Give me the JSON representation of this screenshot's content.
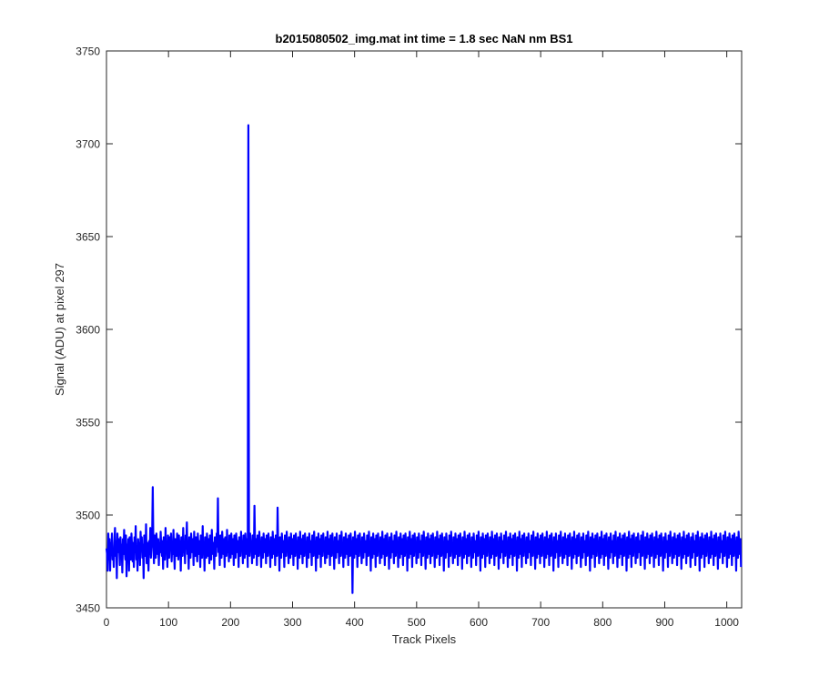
{
  "chart_data": {
    "type": "line",
    "title": "b2015080502_img.mat int time = 1.8 sec  NaN nm BS1",
    "xlabel": "Track Pixels",
    "ylabel": "Signal (ADU) at pixel 297",
    "xlim": [
      0,
      1024
    ],
    "ylim": [
      3450,
      3750
    ],
    "xticks": [
      "0",
      "100",
      "200",
      "300",
      "400",
      "500",
      "600",
      "700",
      "800",
      "900",
      "1000"
    ],
    "yticks": [
      "3450",
      "3500",
      "3550",
      "3600",
      "3650",
      "3700",
      "3750"
    ],
    "grid": false,
    "series_color": "#0000ff",
    "series": [
      {
        "x_start": 0,
        "x_end": 1023,
        "values": [
          3482,
          3479,
          3470,
          3490,
          3476,
          3487,
          3470,
          3485,
          3479,
          3490,
          3476,
          3481,
          3472,
          3485,
          3493,
          3478,
          3486,
          3466,
          3490,
          3480,
          3487,
          3482,
          3473,
          3488,
          3478,
          3484,
          3469,
          3487,
          3479,
          3492,
          3481,
          3476,
          3489,
          3467,
          3484,
          3479,
          3487,
          3470,
          3488,
          3481,
          3476,
          3490,
          3483,
          3475,
          3485,
          3472,
          3488,
          3480,
          3494,
          3476,
          3483,
          3470,
          3487,
          3479,
          3485,
          3473,
          3491,
          3481,
          3488,
          3477,
          3484,
          3466,
          3489,
          3482,
          3478,
          3495,
          3474,
          3485,
          3481,
          3470,
          3486,
          3479,
          3493,
          3477,
          3484,
          3488,
          3515,
          3484,
          3474,
          3489,
          3481,
          3477,
          3490,
          3484,
          3479,
          3487,
          3473,
          3485,
          3480,
          3491,
          3482,
          3478,
          3486,
          3471,
          3488,
          3482,
          3476,
          3493,
          3480,
          3485,
          3472,
          3489,
          3481,
          3477,
          3488,
          3483,
          3490,
          3475,
          3484,
          3479,
          3492,
          3480,
          3471,
          3487,
          3482,
          3478,
          3490,
          3484,
          3476,
          3489,
          3481,
          3486,
          3470,
          3488,
          3483,
          3478,
          3493,
          3480,
          3485,
          3474,
          3489,
          3482,
          3496,
          3479,
          3486,
          3471,
          3488,
          3482,
          3477,
          3490,
          3484,
          3480,
          3487,
          3473,
          3491,
          3482,
          3478,
          3488,
          3481,
          3475,
          3490,
          3483,
          3479,
          3486,
          3472,
          3489,
          3482,
          3477,
          3494,
          3480,
          3485,
          3470,
          3488,
          3481,
          3477,
          3490,
          3484,
          3478,
          3487,
          3474,
          3489,
          3481,
          3476,
          3492,
          3483,
          3479,
          3485,
          3471,
          3488,
          3482,
          3478,
          3490,
          3483,
          3509,
          3480,
          3486,
          3473,
          3489,
          3481,
          3477,
          3491,
          3484,
          3479,
          3487,
          3472,
          3488,
          3482,
          3478,
          3492,
          3480,
          3485,
          3475,
          3489,
          3482,
          3477,
          3490,
          3484,
          3479,
          3487,
          3473,
          3489,
          3481,
          3477,
          3490,
          3484,
          3480,
          3486,
          3472,
          3488,
          3483,
          3478,
          3491,
          3481,
          3486,
          3474,
          3489,
          3482,
          3477,
          3490,
          3484,
          3479,
          3487,
          3472,
          3710,
          3488,
          3478,
          3490,
          3482,
          3486,
          3474,
          3489,
          3481,
          3477,
          3505,
          3484,
          3479,
          3487,
          3473,
          3489,
          3482,
          3478,
          3491,
          3483,
          3485,
          3472,
          3488,
          3481,
          3477,
          3490,
          3484,
          3480,
          3487,
          3474,
          3489,
          3482,
          3478,
          3490,
          3483,
          3486,
          3472,
          3488,
          3481,
          3477,
          3491,
          3484,
          3479,
          3487,
          3473,
          3489,
          3482,
          3478,
          3504,
          3483,
          3485,
          3470,
          3488,
          3481,
          3477,
          3490,
          3484,
          3480,
          3486,
          3472,
          3489,
          3482,
          3478,
          3491,
          3483,
          3485,
          3474,
          3488,
          3481,
          3477,
          3490,
          3484,
          3479,
          3487,
          3473,
          3489,
          3482,
          3478,
          3490,
          3483,
          3486,
          3471,
          3488,
          3481,
          3477,
          3491,
          3484,
          3479,
          3487,
          3474,
          3489,
          3482,
          3478,
          3490,
          3483,
          3485,
          3472,
          3488,
          3481,
          3477,
          3490,
          3484,
          3480,
          3486,
          3473,
          3489,
          3482,
          3478,
          3491,
          3483,
          3485,
          3470,
          3488,
          3481,
          3477,
          3490,
          3484,
          3479,
          3487,
          3472,
          3489,
          3482,
          3478,
          3490,
          3483,
          3486,
          3474,
          3488,
          3481,
          3477,
          3491,
          3484,
          3479,
          3487,
          3473,
          3489,
          3482,
          3478,
          3490,
          3483,
          3485,
          3471,
          3488,
          3481,
          3477,
          3490,
          3484,
          3480,
          3486,
          3474,
          3489,
          3482,
          3478,
          3491,
          3483,
          3485,
          3472,
          3488,
          3481,
          3477,
          3490,
          3484,
          3479,
          3487,
          3473,
          3489,
          3482,
          3478,
          3490,
          3483,
          3486,
          3458,
          3488,
          3481,
          3477,
          3491,
          3484,
          3479,
          3487,
          3472,
          3489,
          3482,
          3478,
          3490,
          3483,
          3485,
          3474,
          3488,
          3481,
          3477,
          3490,
          3484,
          3480,
          3486,
          3473,
          3489,
          3482,
          3478,
          3491,
          3483,
          3485,
          3470,
          3488,
          3481,
          3477,
          3490,
          3484,
          3479,
          3487,
          3472,
          3489,
          3482,
          3478,
          3490,
          3483,
          3486,
          3474,
          3488,
          3481,
          3477,
          3491,
          3484,
          3479,
          3487,
          3473,
          3489,
          3482,
          3478,
          3490,
          3483,
          3485,
          3471,
          3488,
          3481,
          3477,
          3490,
          3484,
          3480,
          3486,
          3474,
          3489,
          3482,
          3478,
          3491,
          3483,
          3485,
          3472,
          3488,
          3481,
          3477,
          3490,
          3484,
          3479,
          3487,
          3473,
          3489,
          3482,
          3478,
          3490,
          3483,
          3486,
          3470,
          3488,
          3481,
          3477,
          3491,
          3484,
          3479,
          3487,
          3472,
          3489,
          3482,
          3478,
          3490,
          3483,
          3485,
          3474,
          3488,
          3481,
          3477,
          3490,
          3484,
          3480,
          3486,
          3473,
          3489,
          3482,
          3478,
          3491,
          3483,
          3485,
          3471,
          3488,
          3481,
          3477,
          3490,
          3484,
          3479,
          3487,
          3474,
          3489,
          3482,
          3478,
          3490,
          3483,
          3486,
          3472,
          3488,
          3481,
          3477,
          3491,
          3484,
          3479,
          3487,
          3473,
          3489,
          3482,
          3478,
          3490,
          3483,
          3485,
          3470,
          3488,
          3481,
          3477,
          3490,
          3484,
          3480,
          3486,
          3472,
          3489,
          3482,
          3478,
          3491,
          3483,
          3485,
          3474,
          3488,
          3481,
          3477,
          3490,
          3484,
          3479,
          3487,
          3473,
          3489,
          3482,
          3478,
          3490,
          3483,
          3486,
          3471,
          3488,
          3481,
          3477,
          3491,
          3484,
          3479,
          3487,
          3474,
          3489,
          3482,
          3478,
          3490,
          3483,
          3485,
          3472,
          3488,
          3481,
          3477,
          3490,
          3484,
          3480,
          3486,
          3473,
          3489,
          3482,
          3478,
          3491,
          3483,
          3485,
          3470,
          3488,
          3481,
          3477,
          3490,
          3484,
          3479,
          3487,
          3472,
          3489,
          3482,
          3478,
          3490,
          3483,
          3486,
          3474,
          3488,
          3481,
          3477,
          3491,
          3484,
          3479,
          3487,
          3473,
          3489,
          3482,
          3478,
          3490,
          3483,
          3485,
          3471,
          3488,
          3481,
          3477,
          3490,
          3484,
          3480,
          3486,
          3474,
          3489,
          3482,
          3478,
          3491,
          3483,
          3485,
          3472,
          3488,
          3481,
          3477,
          3490,
          3484,
          3479,
          3487,
          3473,
          3489,
          3482,
          3478,
          3490,
          3483,
          3486,
          3470,
          3488,
          3481,
          3477,
          3491,
          3484,
          3479,
          3487,
          3472,
          3489,
          3482,
          3478,
          3490,
          3483,
          3485,
          3474,
          3488,
          3481,
          3477,
          3490,
          3484,
          3480,
          3486,
          3473,
          3489,
          3482,
          3478,
          3491,
          3483,
          3485,
          3471,
          3488,
          3481,
          3477,
          3490,
          3484,
          3479,
          3487,
          3474,
          3489,
          3482,
          3478,
          3490,
          3483,
          3486,
          3472,
          3488,
          3481,
          3477,
          3491,
          3484,
          3479,
          3487,
          3473,
          3489,
          3482,
          3478,
          3490,
          3483,
          3485,
          3470,
          3488,
          3481,
          3477,
          3490,
          3484,
          3480,
          3486,
          3472,
          3489,
          3482,
          3478,
          3491,
          3483,
          3485,
          3474,
          3488,
          3481,
          3477,
          3490,
          3484,
          3479,
          3487,
          3473,
          3489,
          3482,
          3478,
          3490,
          3483,
          3486,
          3471,
          3488,
          3481,
          3477,
          3491,
          3484,
          3479,
          3487,
          3474,
          3489,
          3482,
          3478,
          3490,
          3483,
          3485,
          3472,
          3488,
          3481,
          3477,
          3490,
          3484,
          3480,
          3486,
          3473,
          3489,
          3482,
          3478,
          3491,
          3483,
          3485,
          3470,
          3488,
          3481,
          3477,
          3490,
          3484,
          3479,
          3487,
          3472,
          3489,
          3482,
          3478,
          3490,
          3483,
          3486,
          3474,
          3488,
          3481,
          3477,
          3491,
          3484,
          3479,
          3487,
          3473,
          3489,
          3482,
          3478,
          3490,
          3483,
          3485,
          3471,
          3488,
          3481,
          3477,
          3490,
          3484,
          3480,
          3486,
          3474,
          3489,
          3482,
          3478,
          3491,
          3483,
          3485,
          3472,
          3488,
          3481,
          3477,
          3490,
          3484,
          3479,
          3487,
          3473,
          3489,
          3482,
          3478,
          3490,
          3483,
          3486,
          3470,
          3488,
          3481,
          3477,
          3491,
          3484,
          3479,
          3487,
          3472,
          3489,
          3482,
          3478,
          3490,
          3483,
          3485,
          3474,
          3488,
          3481,
          3477,
          3490,
          3484,
          3480,
          3486,
          3473,
          3489,
          3482,
          3478,
          3491,
          3483,
          3485,
          3471,
          3488,
          3481,
          3477,
          3490,
          3484,
          3479,
          3487,
          3474,
          3489,
          3482,
          3478,
          3490,
          3483,
          3486,
          3472,
          3488,
          3481,
          3477,
          3491,
          3484,
          3479,
          3487,
          3473,
          3489,
          3482,
          3478,
          3490,
          3483,
          3485,
          3470,
          3488,
          3481,
          3477,
          3490,
          3484,
          3480,
          3486,
          3472,
          3489,
          3482,
          3478,
          3491,
          3483,
          3485,
          3474,
          3488,
          3481,
          3477,
          3490,
          3484,
          3479,
          3487,
          3473,
          3489,
          3482,
          3478,
          3490,
          3483,
          3486,
          3471,
          3488,
          3481,
          3477,
          3491,
          3484,
          3479,
          3487,
          3474,
          3489,
          3482,
          3478,
          3490,
          3483,
          3485,
          3472,
          3488,
          3481,
          3477,
          3490,
          3484,
          3480,
          3486,
          3473,
          3489,
          3482,
          3478,
          3491,
          3483,
          3485,
          3470,
          3488,
          3481,
          3477,
          3490,
          3484,
          3479,
          3487,
          3472,
          3489,
          3482,
          3478,
          3490,
          3483,
          3486,
          3474,
          3488,
          3481,
          3477,
          3491,
          3484,
          3479,
          3487,
          3473,
          3489,
          3482,
          3478,
          3490,
          3483,
          3485,
          3471,
          3488,
          3481,
          3477,
          3490,
          3484,
          3480,
          3486,
          3474,
          3489,
          3482,
          3478,
          3491,
          3483,
          3485,
          3472,
          3488,
          3481,
          3477,
          3490,
          3484,
          3479,
          3487,
          3473,
          3489,
          3482,
          3478,
          3490,
          3483,
          3486,
          3470,
          3488,
          3481,
          3477,
          3491,
          3484,
          3479,
          3487,
          3472
        ]
      }
    ]
  }
}
